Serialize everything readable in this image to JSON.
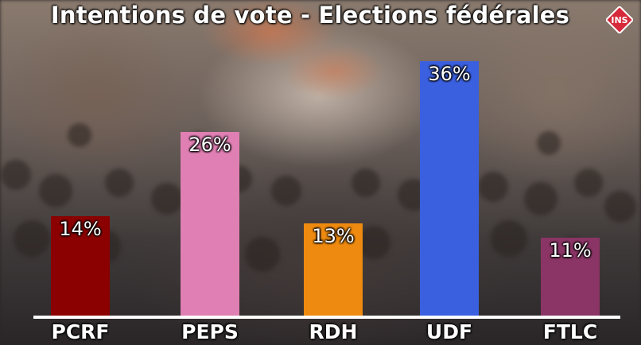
{
  "title": "Intentions de vote - Elections fédérales",
  "logo_text": "INS",
  "chart_data": {
    "type": "bar",
    "title": "Intentions de vote - Elections fédérales",
    "categories": [
      "PCRF",
      "PEPS",
      "RDH",
      "UDF",
      "FTLC"
    ],
    "values": [
      14,
      26,
      13,
      36,
      11
    ],
    "value_labels": [
      "14%",
      "26%",
      "13%",
      "36%",
      "11%"
    ],
    "colors": [
      "#8b0000",
      "#e07fb3",
      "#ee8a0f",
      "#3a60e0",
      "#8a3565"
    ],
    "unit": "%",
    "xlabel": "",
    "ylabel": "",
    "grid": false,
    "legend": "none"
  }
}
